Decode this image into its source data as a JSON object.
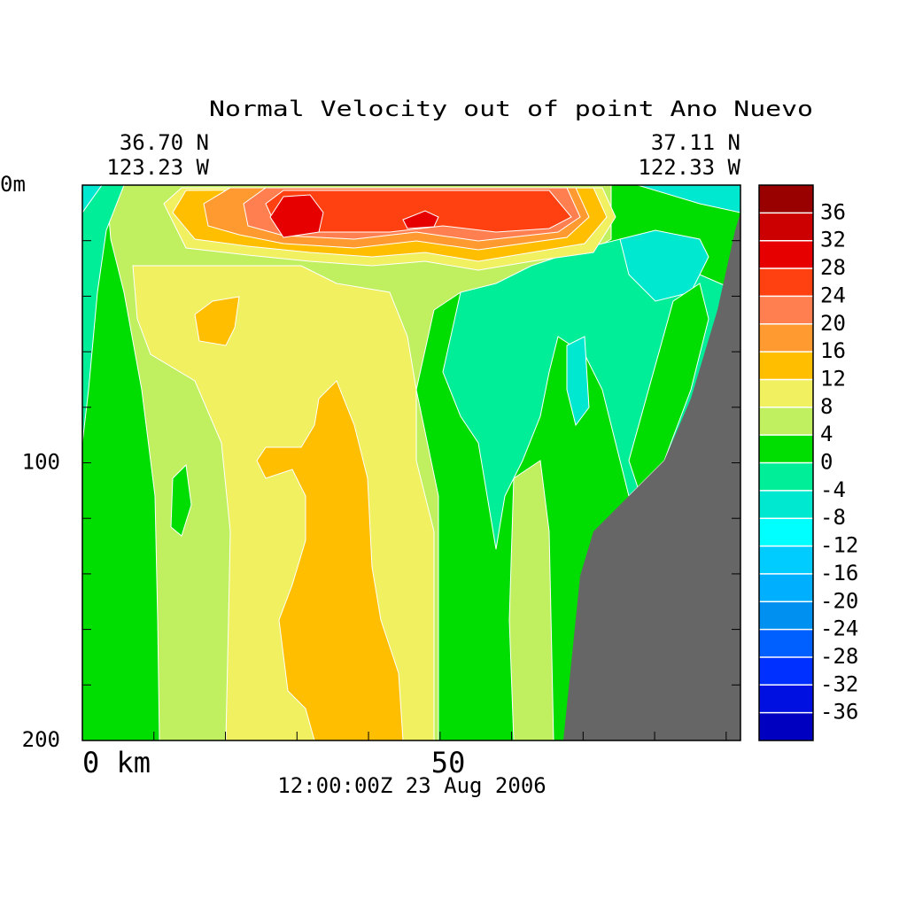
{
  "chart_data": {
    "type": "contour",
    "title": "Normal Velocity out of point Ano Nuevo",
    "date": "12:00:00Z  23 Aug 2006",
    "left_lat": "36.70 N",
    "left_lon": "123.23 W",
    "right_lat": "37.11 N",
    "right_lon": "122.33 W",
    "xlim": [
      0,
      92
    ],
    "ylim": [
      200,
      0
    ],
    "xticks": [
      {
        "value": 0,
        "label": "0 km"
      },
      {
        "value": 50,
        "label": "50"
      }
    ],
    "xminorticks": [
      10,
      20,
      30,
      40,
      60,
      70,
      80,
      90
    ],
    "yticks": [
      {
        "value": 0,
        "label": "0m"
      },
      100,
      200
    ],
    "yminorticks": [
      20,
      40,
      60,
      80,
      120,
      140,
      160,
      180
    ],
    "land_color": "#666666",
    "colorbar": {
      "levels": [
        -40,
        -36,
        -32,
        -28,
        -24,
        -20,
        -16,
        -12,
        -8,
        -4,
        0,
        4,
        8,
        12,
        16,
        20,
        24,
        28,
        32,
        36,
        40
      ],
      "colors": [
        "#0000c0",
        "#0010e0",
        "#0030ff",
        "#0060ff",
        "#0090f0",
        "#00b0ff",
        "#00ccff",
        "#00ffff",
        "#00e8d0",
        "#00ee98",
        "#00dd00",
        "#c0f060",
        "#f0f060",
        "#ffbf00",
        "#ff9a30",
        "#ff7f50",
        "#ff4010",
        "#e60000",
        "#cc0000",
        "#990000"
      ],
      "ticks": [
        36,
        32,
        28,
        24,
        20,
        16,
        12,
        8,
        4,
        0,
        -4,
        -8,
        -12,
        -16,
        -20,
        -24,
        -28,
        -32,
        -36
      ]
    }
  }
}
